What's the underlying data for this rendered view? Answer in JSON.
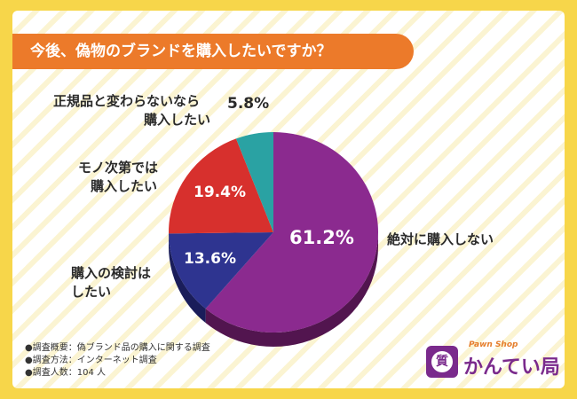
{
  "title": "今後、偽物のブランドを購入したいですか？",
  "colors": {
    "background": "#f7d64a",
    "title_bar": "#ec7a2a",
    "text": "#2a2a2a"
  },
  "chart_data": {
    "type": "pie",
    "slices": [
      {
        "label": "絶対に購入しない",
        "value": 61.2,
        "value_label": "61.2%",
        "color": "#8b2a8f",
        "shadow": "#52154f"
      },
      {
        "label": "購入の検討はしたい",
        "label_lines": [
          "購入の検討は",
          "したい"
        ],
        "value": 13.6,
        "value_label": "13.6%",
        "color": "#2e3490",
        "shadow": "#1a1d5a"
      },
      {
        "label": "モノ次第では購入したい",
        "label_lines": [
          "モノ次第では",
          "購入したい"
        ],
        "value": 19.4,
        "value_label": "19.4%",
        "color": "#d7302d",
        "shadow": "#8b1d1b"
      },
      {
        "label": "正規品と変わらないなら購入したい",
        "label_lines": [
          "正規品と変わらないなら",
          "購入したい"
        ],
        "value": 5.8,
        "value_label": "5.8%",
        "color": "#2aa2a3",
        "shadow": "#176667"
      }
    ]
  },
  "notes": [
    "●調査概要：偽ブランド品の購入に関する調査",
    "●調査方法：インターネット調査",
    "●調査人数：104 人"
  ],
  "logo": {
    "sub": "Pawn  Shop",
    "main": "かんてい局",
    "badge_char": "質"
  }
}
